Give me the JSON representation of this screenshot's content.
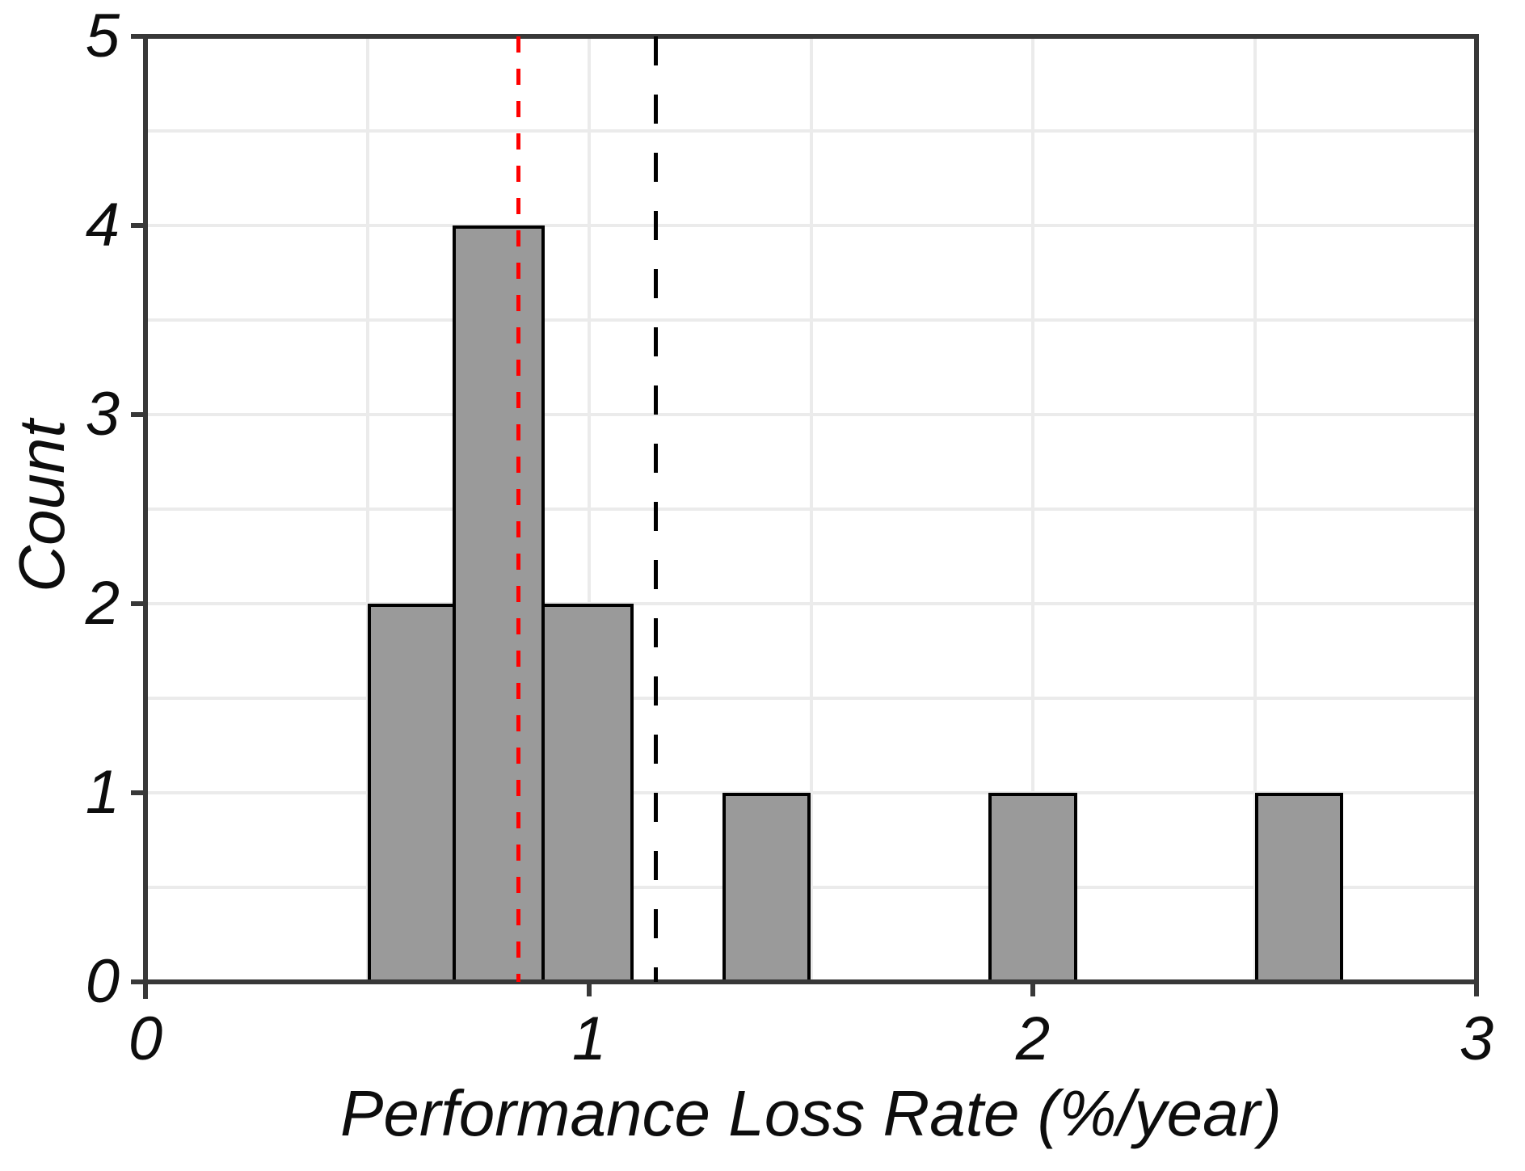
{
  "chart_data": {
    "type": "bar",
    "subtype": "histogram",
    "title": "",
    "xlabel": "Performance Loss Rate (%/year)",
    "ylabel": "Count",
    "xlim": [
      0,
      3
    ],
    "ylim": [
      0,
      5
    ],
    "x_ticks": [
      0,
      1,
      2,
      3
    ],
    "y_ticks": [
      0,
      1,
      2,
      3,
      4,
      5
    ],
    "grid": {
      "visible": true,
      "interval": 0.5,
      "color": "#ebebeb"
    },
    "bin_width": 0.2,
    "bins": [
      {
        "x0": 0.5,
        "x1": 0.7,
        "count": 2
      },
      {
        "x0": 0.7,
        "x1": 0.9,
        "count": 4
      },
      {
        "x0": 0.9,
        "x1": 1.1,
        "count": 2
      },
      {
        "x0": 1.3,
        "x1": 1.5,
        "count": 1
      },
      {
        "x0": 1.9,
        "x1": 2.1,
        "count": 1
      },
      {
        "x0": 2.5,
        "x1": 2.7,
        "count": 1
      }
    ],
    "total_count": 11,
    "bar_fill": "#9a9a9a",
    "bar_stroke": "#000000",
    "axis_color": "#383838",
    "reference_lines": [
      {
        "x": 0.84,
        "color": "#ff0000",
        "style": "dashed",
        "dash": [
          20,
          20
        ],
        "name": "reference-line-red"
      },
      {
        "x": 1.15,
        "color": "#000000",
        "style": "dashed",
        "dash": [
          36,
          36
        ],
        "name": "reference-line-black"
      }
    ],
    "legend": null
  }
}
